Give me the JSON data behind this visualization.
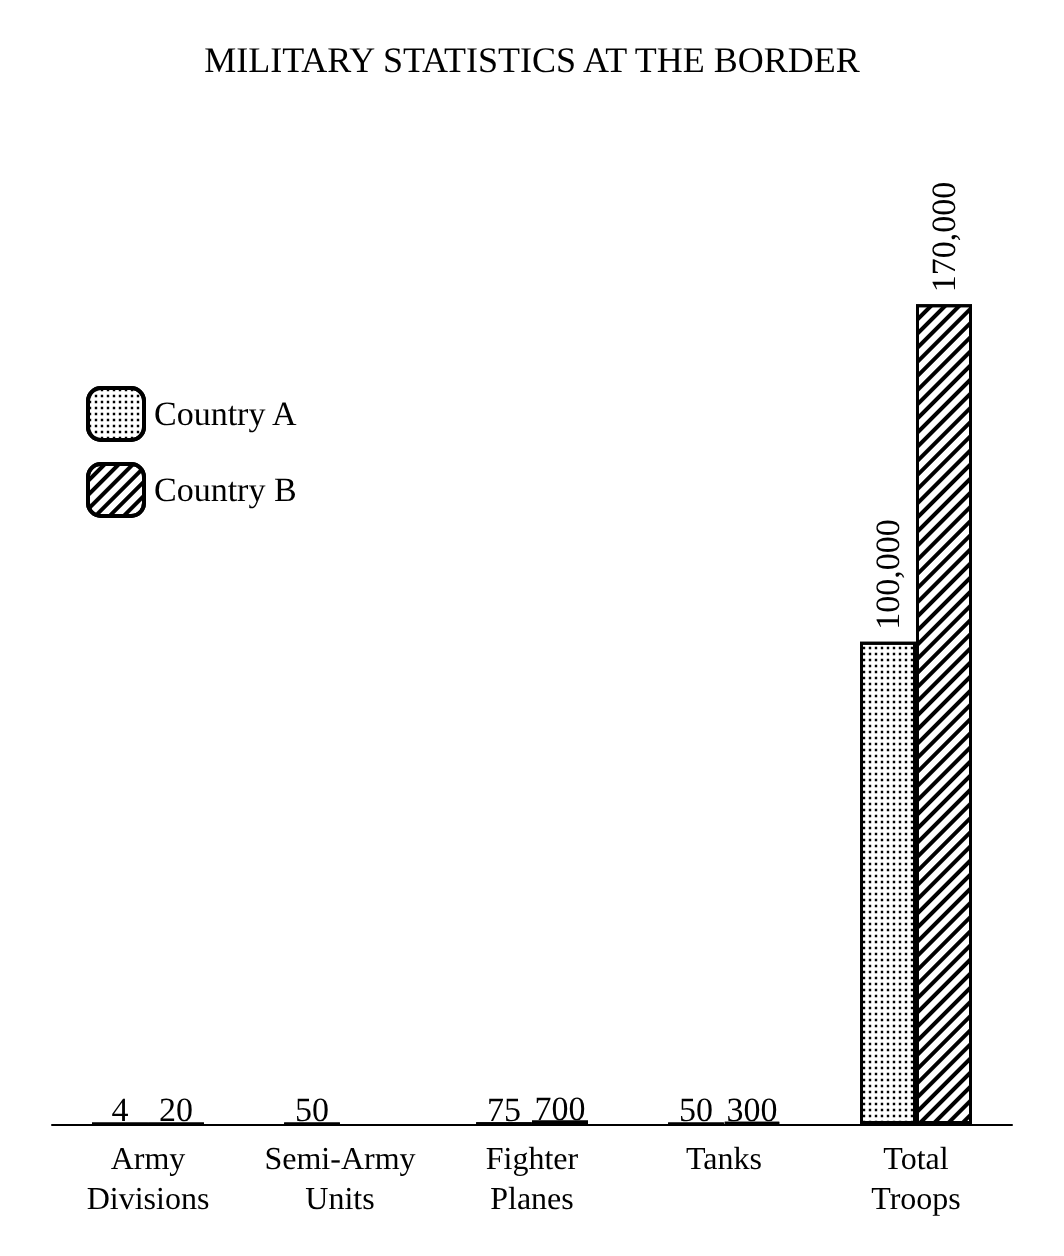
{
  "chart_data": {
    "type": "bar",
    "title": "MILITARY STATISTICS AT THE BORDER",
    "categories": [
      "Army\nDivisions",
      "Semi-Army\nUnits",
      "Fighter\nPlanes",
      "Tanks",
      "Total\nTroops"
    ],
    "series": [
      {
        "name": "Country A",
        "color": "#000000",
        "values": [
          4,
          50,
          75,
          50,
          100000
        ],
        "value_labels": [
          "4",
          "50",
          "75",
          "50",
          "100,000"
        ]
      },
      {
        "name": "Country B",
        "color": "#000000",
        "values": [
          20,
          null,
          700,
          300,
          170000
        ],
        "value_labels": [
          "20",
          null,
          "700",
          "300",
          "170,000"
        ]
      }
    ],
    "tick_labels": "x",
    "legend": "top left"
  }
}
